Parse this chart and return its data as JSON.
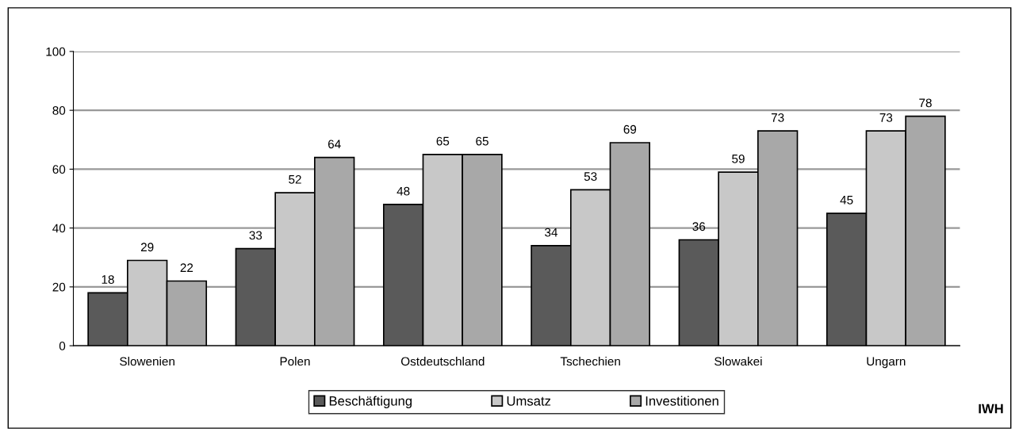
{
  "chart_data": {
    "type": "bar",
    "categories": [
      "Slowenien",
      "Polen",
      "Ostdeutschland",
      "Tschechien",
      "Slowakei",
      "Ungarn"
    ],
    "series": [
      {
        "name": "Beschäftigung",
        "color": "#5a5a5a",
        "values": [
          18,
          33,
          48,
          34,
          36,
          45
        ]
      },
      {
        "name": "Umsatz",
        "color": "#c8c8c8",
        "values": [
          29,
          52,
          65,
          53,
          59,
          73
        ]
      },
      {
        "name": "Investitionen",
        "color": "#a8a8a8",
        "values": [
          22,
          64,
          65,
          69,
          73,
          78
        ]
      }
    ],
    "ylim": [
      0,
      100
    ],
    "yticks": [
      0,
      20,
      40,
      60,
      80,
      100
    ],
    "grid": "y",
    "legend": "bottom",
    "data_labels": true,
    "annotations": [
      "IWH"
    ]
  }
}
